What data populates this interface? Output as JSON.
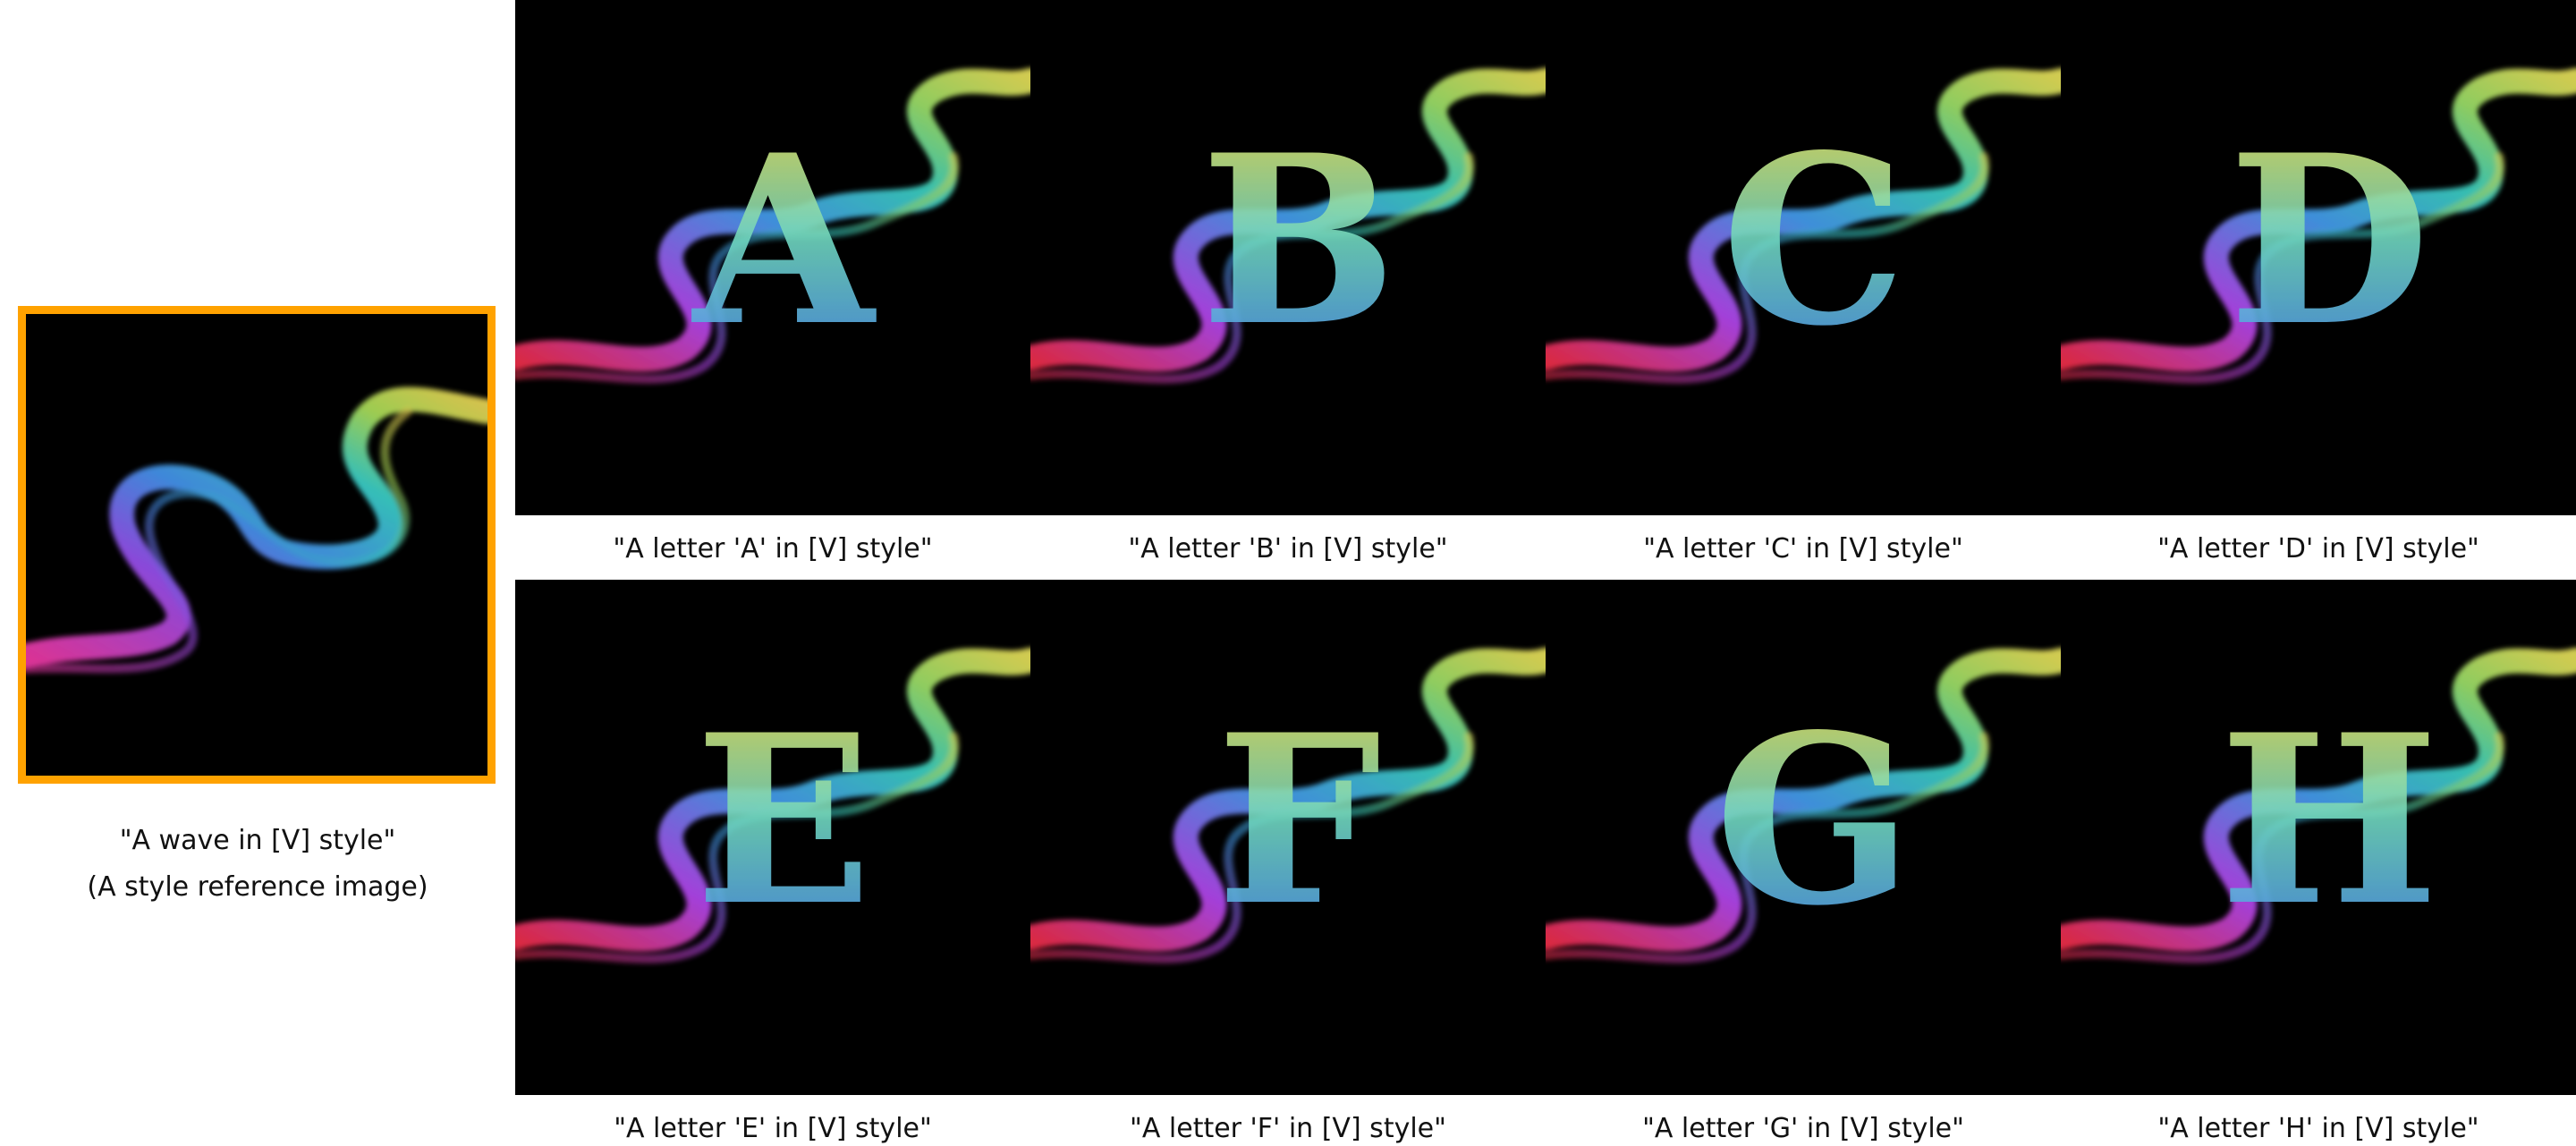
{
  "reference": {
    "caption_line1": "\"A wave in [V] style\"",
    "caption_line2": "(A style reference image)",
    "frame_color": "#ffa200"
  },
  "tiles": [
    {
      "letter": "A",
      "caption": "\"A letter 'A' in [V] style\""
    },
    {
      "letter": "B",
      "caption": "\"A letter 'B' in [V] style\""
    },
    {
      "letter": "C",
      "caption": "\"A letter 'C' in [V] style\""
    },
    {
      "letter": "D",
      "caption": "\"A letter 'D' in [V] style\""
    },
    {
      "letter": "E",
      "caption": "\"A letter 'E' in [V] style\""
    },
    {
      "letter": "F",
      "caption": "\"A letter 'F' in [V] style\""
    },
    {
      "letter": "G",
      "caption": "\"A letter 'G' in [V] style\""
    },
    {
      "letter": "H",
      "caption": "\"A letter 'H' in [V] style\""
    }
  ]
}
